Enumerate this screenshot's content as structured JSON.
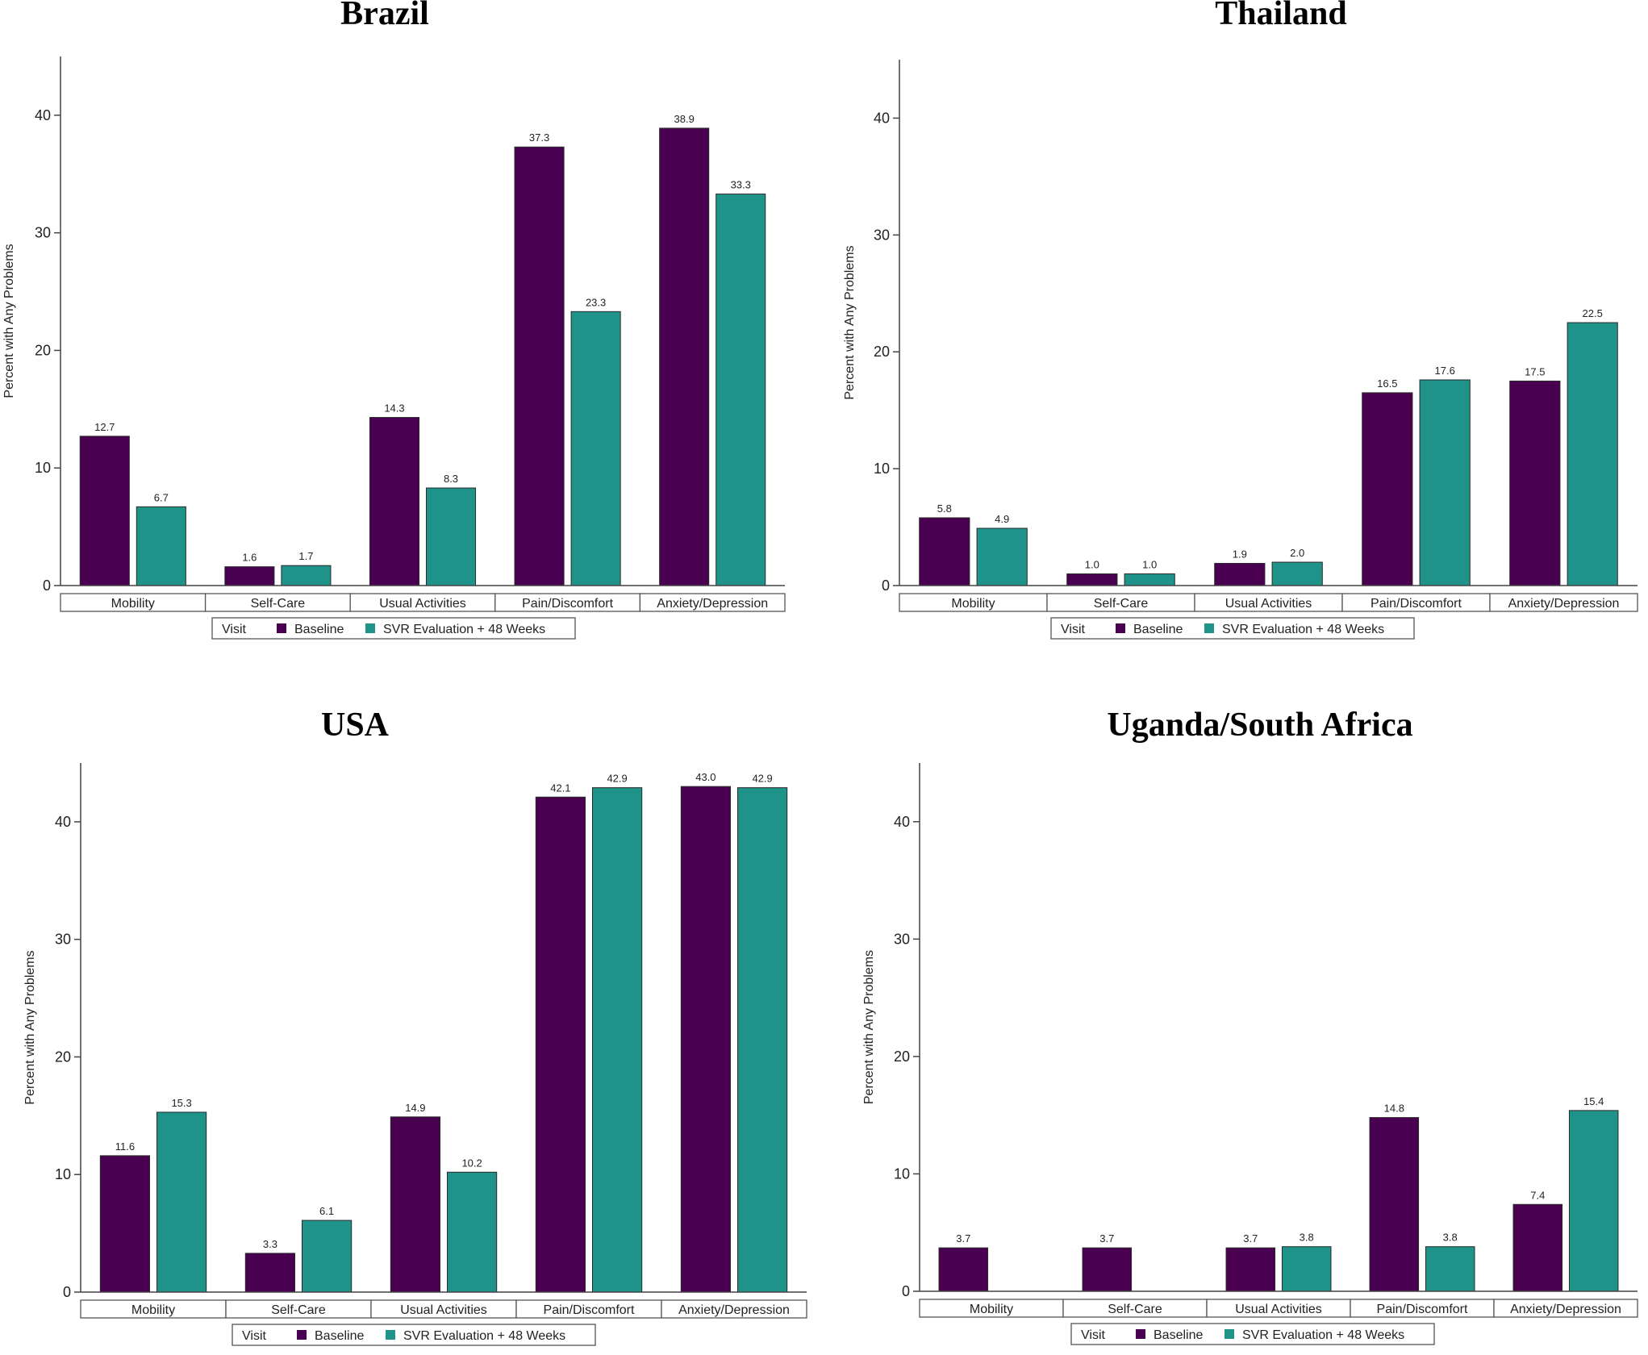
{
  "legend": {
    "title": "Visit",
    "baseline_label": "Baseline",
    "svr_label": "SVR Evaluation + 48 Weeks"
  },
  "colors": {
    "baseline": "#4a0050",
    "svr": "#1f928a"
  },
  "chart_data": [
    {
      "type": "bar",
      "title": "Brazil",
      "ylabel": "Percent with Any Problems",
      "ylim": [
        0,
        45
      ],
      "yticks": [
        0,
        10,
        20,
        30,
        40
      ],
      "categories": [
        "Mobility",
        "Self-Care",
        "Usual Activities",
        "Pain/Discomfort",
        "Anxiety/Depression"
      ],
      "series": [
        {
          "name": "Baseline",
          "values": [
            12.7,
            1.6,
            14.3,
            37.3,
            38.9
          ],
          "labels": [
            "12.7",
            "1.6",
            "14.3",
            "37.3",
            "38.9"
          ]
        },
        {
          "name": "SVR Evaluation + 48 Weeks",
          "values": [
            6.7,
            1.7,
            8.3,
            23.3,
            33.3
          ],
          "labels": [
            "6.7",
            "1.7",
            "8.3",
            "23.3",
            "33.3"
          ]
        }
      ]
    },
    {
      "type": "bar",
      "title": "Thailand",
      "ylabel": "Percent with Any Problems",
      "ylim": [
        0,
        45
      ],
      "yticks": [
        0,
        10,
        20,
        30,
        40
      ],
      "categories": [
        "Mobility",
        "Self-Care",
        "Usual Activities",
        "Pain/Discomfort",
        "Anxiety/Depression"
      ],
      "series": [
        {
          "name": "Baseline",
          "values": [
            5.8,
            1.0,
            1.9,
            16.5,
            17.5
          ],
          "labels": [
            "5.8",
            "1.0",
            "1.9",
            "16.5",
            "17.5"
          ]
        },
        {
          "name": "SVR Evaluation + 48 Weeks",
          "values": [
            4.9,
            1.0,
            2.0,
            17.6,
            22.5
          ],
          "labels": [
            "4.9",
            "1.0",
            "2.0",
            "17.6",
            "22.5"
          ]
        }
      ]
    },
    {
      "type": "bar",
      "title": "USA",
      "ylabel": "Percent with Any Problems",
      "ylim": [
        0,
        45
      ],
      "yticks": [
        0,
        10,
        20,
        30,
        40
      ],
      "categories": [
        "Mobility",
        "Self-Care",
        "Usual Activities",
        "Pain/Discomfort",
        "Anxiety/Depression"
      ],
      "series": [
        {
          "name": "Baseline",
          "values": [
            11.6,
            3.3,
            14.9,
            42.1,
            43.0
          ],
          "labels": [
            "11.6",
            "3.3",
            "14.9",
            "42.1",
            "43.0"
          ]
        },
        {
          "name": "SVR Evaluation + 48 Weeks",
          "values": [
            15.3,
            6.1,
            10.2,
            42.9,
            42.9
          ],
          "labels": [
            "15.3",
            "6.1",
            "10.2",
            "42.9",
            "42.9"
          ]
        }
      ]
    },
    {
      "type": "bar",
      "title": "Uganda/South Africa",
      "ylabel": "Percent with Any Problems",
      "ylim": [
        0,
        45
      ],
      "yticks": [
        0,
        10,
        20,
        30,
        40
      ],
      "categories": [
        "Mobility",
        "Self-Care",
        "Usual Activities",
        "Pain/Discomfort",
        "Anxiety/Depression"
      ],
      "series": [
        {
          "name": "Baseline",
          "values": [
            3.7,
            3.7,
            3.7,
            14.8,
            7.4
          ],
          "labels": [
            "3.7",
            "3.7",
            "3.7",
            "14.8",
            "7.4"
          ]
        },
        {
          "name": "SVR Evaluation + 48 Weeks",
          "values": [
            null,
            null,
            3.8,
            3.8,
            15.4
          ],
          "labels": [
            "",
            "",
            "3.8",
            "3.8",
            "15.4"
          ]
        }
      ]
    }
  ]
}
